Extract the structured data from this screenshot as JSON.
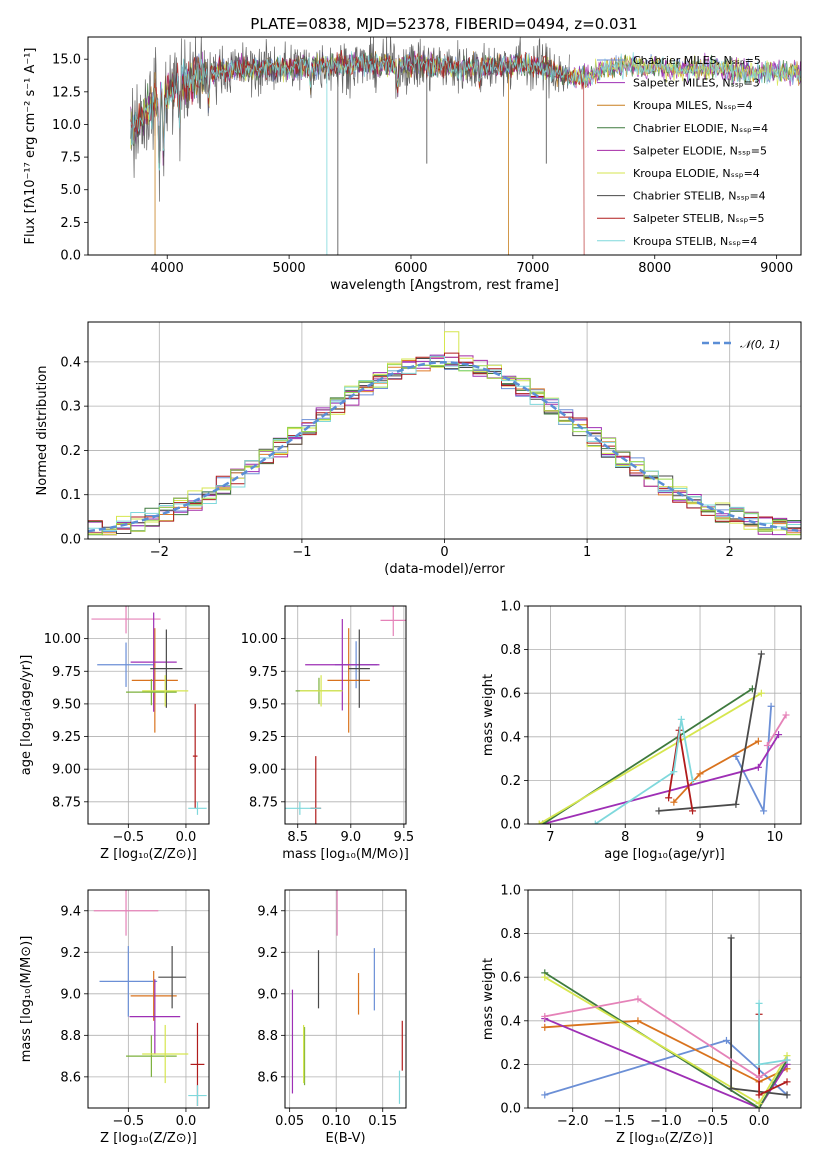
{
  "figure_title": "PLATE=0838, MJD=52378, FIBERID=0494, z=0.031",
  "chart_data": [
    {
      "id": "spectrum",
      "type": "line",
      "title": "PLATE=0838, MJD=52378, FIBERID=0494, z=0.031",
      "xlabel": "wavelength [Angstrom, rest frame]",
      "ylabel": "Flux [fλ10⁻¹⁷ erg cm⁻² s⁻¹ A⁻¹]",
      "xlim": [
        3350,
        9200
      ],
      "ylim": [
        0,
        16.7
      ],
      "xticks": [
        4000,
        5000,
        6000,
        7000,
        8000,
        9000
      ],
      "yticks": [
        0.0,
        2.5,
        5.0,
        7.5,
        10.0,
        12.5,
        15.0
      ],
      "grid": false,
      "legend_position": "top-right",
      "series": [
        {
          "name": "Chabrier MILES, Nₛₛₚ=5",
          "color": "#6b8fd6"
        },
        {
          "name": "Salpeter MILES, Nₛₛₚ=3",
          "color": "#9e2fb5"
        },
        {
          "name": "Kroupa MILES, Nₛₛₚ=4",
          "color": "#c87f1e"
        },
        {
          "name": "Chabrier ELODIE, Nₛₛₚ=4",
          "color": "#3e7a3e"
        },
        {
          "name": "Salpeter ELODIE, Nₛₛₚ=5",
          "color": "#a52aa5"
        },
        {
          "name": "Kroupa ELODIE, Nₛₛₚ=4",
          "color": "#d6e64f"
        },
        {
          "name": "Chabrier STELIB, Nₛₛₚ=4",
          "color": "#4a4a4a"
        },
        {
          "name": "Salpeter STELIB, Nₛₛₚ=5",
          "color": "#b01c1c"
        },
        {
          "name": "Kroupa STELIB, Nₛₛₚ=4",
          "color": "#7fd8dc"
        }
      ],
      "continuum": {
        "x": [
          3700,
          3900,
          4000,
          4100,
          4300,
          4500,
          4800,
          5000,
          5200,
          5500,
          5800,
          6100,
          6400,
          6700,
          6900,
          7100,
          7300,
          7450,
          7600,
          7800,
          7900,
          8000,
          8200,
          8500,
          8800
        ],
        "y": [
          9.5,
          11.8,
          12.6,
          13.0,
          13.9,
          14.2,
          14.3,
          14.4,
          14.5,
          14.6,
          14.6,
          14.5,
          14.4,
          14.5,
          14.6,
          14.4,
          13.6,
          13.6,
          14.3,
          14.6,
          14.3,
          14.4,
          14.2,
          14.3,
          14.0
        ]
      }
    },
    {
      "id": "residuals",
      "type": "histogram",
      "xlabel": "(data-model)/error",
      "ylabel": "Normed distribution",
      "xlim": [
        -2.5,
        2.5
      ],
      "ylim": [
        0,
        0.49
      ],
      "xticks": [
        -2,
        -1,
        0,
        1,
        2
      ],
      "yticks": [
        0.0,
        0.1,
        0.2,
        0.3,
        0.4
      ],
      "grid": true,
      "legend_position": "top-right",
      "reference_label": "𝒩(0, 1)",
      "reference_color": "#5b8ed6"
    },
    {
      "id": "age-vs-z",
      "type": "scatter",
      "xlabel": "Z [log₁₀(Z/Z⊙)]",
      "ylabel": "age  [log₁₀(age/yr)]",
      "xlim": [
        -0.85,
        0.2
      ],
      "ylim": [
        8.58,
        10.25
      ],
      "xticks": [
        -0.5,
        0.0
      ],
      "yticks": [
        8.75,
        9.0,
        9.25,
        9.5,
        9.75,
        10.0
      ],
      "grid": true,
      "points": [
        {
          "color": "#e582b8",
          "x": -0.52,
          "y": 10.15,
          "xerr": 0.3,
          "yerr": 0.11
        },
        {
          "color": "#6b8fd6",
          "x": -0.52,
          "y": 9.8,
          "xerr": 0.25,
          "yerr": 0.17
        },
        {
          "color": "#d9731e",
          "x": -0.27,
          "y": 9.68,
          "xerr": 0.2,
          "yerr": 0.4
        },
        {
          "color": "#9e2fb5",
          "x": -0.28,
          "y": 9.82,
          "xerr": 0.2,
          "yerr": 0.38
        },
        {
          "color": "#4a4a4a",
          "x": -0.17,
          "y": 9.77,
          "xerr": 0.14,
          "yerr": 0.3
        },
        {
          "color": "#7cb13c",
          "x": -0.3,
          "y": 9.59,
          "xerr": 0.22,
          "yerr": 0.1
        },
        {
          "color": "#d6e64f",
          "x": -0.18,
          "y": 9.6,
          "xerr": 0.2,
          "yerr": 0.12
        },
        {
          "color": "#b01c1c",
          "x": 0.08,
          "y": 9.1,
          "xerr": 0.02,
          "yerr": 0.4
        },
        {
          "color": "#7fd8dc",
          "x": 0.1,
          "y": 8.7,
          "xerr": 0.08,
          "yerr": 0.05
        }
      ]
    },
    {
      "id": "age-vs-mass",
      "type": "scatter",
      "xlabel": "mass [log₁₀(M/M⊙)]",
      "ylabel": "",
      "xlim": [
        8.38,
        9.52
      ],
      "ylim": [
        8.58,
        10.25
      ],
      "xticks": [
        8.5,
        9.0,
        9.5
      ],
      "yticks": [
        8.75,
        9.0,
        9.25,
        9.5,
        9.75,
        10.0
      ],
      "grid": true,
      "points": [
        {
          "color": "#e582b8",
          "x": 9.4,
          "y": 10.14,
          "xerr": 0.12,
          "yerr": 0.12
        },
        {
          "color": "#6b8fd6",
          "x": 9.05,
          "y": 9.8,
          "xerr": 0.2,
          "yerr": 0.18
        },
        {
          "color": "#d9731e",
          "x": 8.98,
          "y": 9.68,
          "xerr": 0.2,
          "yerr": 0.4
        },
        {
          "color": "#9e2fb5",
          "x": 8.92,
          "y": 9.8,
          "xerr": 0.35,
          "yerr": 0.35
        },
        {
          "color": "#4a4a4a",
          "x": 9.08,
          "y": 9.77,
          "xerr": 0.1,
          "yerr": 0.3
        },
        {
          "color": "#7cb13c",
          "x": 8.7,
          "y": 9.6,
          "xerr": 0.22,
          "yerr": 0.1
        },
        {
          "color": "#d6e64f",
          "x": 8.72,
          "y": 9.6,
          "xerr": 0.2,
          "yerr": 0.12
        },
        {
          "color": "#b01c1c",
          "x": 8.67,
          "y": 8.7,
          "xerr": 0.05,
          "yerr": 0.4
        },
        {
          "color": "#7fd8dc",
          "x": 8.52,
          "y": 8.7,
          "xerr": 0.2,
          "yerr": 0.05
        }
      ]
    },
    {
      "id": "weight-vs-age",
      "type": "line",
      "xlabel": "age  [log₁₀(age/yr)]",
      "ylabel": "mass weight",
      "xlim": [
        6.7,
        10.35
      ],
      "ylim": [
        0,
        1.0
      ],
      "xticks": [
        7,
        8,
        9,
        10
      ],
      "yticks": [
        0.0,
        0.2,
        0.4,
        0.6,
        0.8,
        1.0
      ],
      "grid": true,
      "series": [
        {
          "color": "#6b8fd6",
          "x": [
            9.48,
            9.85,
            9.95
          ],
          "y": [
            0.31,
            0.06,
            0.54
          ]
        },
        {
          "color": "#d9731e",
          "x": [
            8.65,
            9.0,
            9.78
          ],
          "y": [
            0.1,
            0.23,
            0.38
          ]
        },
        {
          "color": "#9e2fb5",
          "x": [
            6.9,
            9.78,
            10.05
          ],
          "y": [
            0.0,
            0.26,
            0.41
          ]
        },
        {
          "color": "#3e7a3e",
          "x": [
            6.9,
            9.7
          ],
          "y": [
            0.0,
            0.62
          ]
        },
        {
          "color": "#d6e64f",
          "x": [
            6.85,
            9.82
          ],
          "y": [
            0.0,
            0.6
          ]
        },
        {
          "color": "#4a4a4a",
          "x": [
            8.45,
            9.48,
            9.82
          ],
          "y": [
            0.06,
            0.09,
            0.78
          ]
        },
        {
          "color": "#b01c1c",
          "x": [
            8.58,
            8.72,
            8.9
          ],
          "y": [
            0.12,
            0.43,
            0.06
          ]
        },
        {
          "color": "#e582b8",
          "x": [
            9.9,
            10.15
          ],
          "y": [
            0.36,
            0.5
          ]
        },
        {
          "color": "#7fd8dc",
          "x": [
            7.6,
            8.65,
            8.75,
            8.9
          ],
          "y": [
            0.0,
            0.24,
            0.48,
            0.2
          ]
        }
      ]
    },
    {
      "id": "mass-vs-z",
      "type": "scatter",
      "xlabel": "Z [log₁₀(Z/Z⊙)]",
      "ylabel": "mass [log₁₀(M/M⊙)]",
      "xlim": [
        -0.85,
        0.2
      ],
      "ylim": [
        8.45,
        9.5
      ],
      "xticks": [
        -0.5,
        0.0
      ],
      "yticks": [
        8.6,
        8.8,
        9.0,
        9.2,
        9.4
      ],
      "grid": true,
      "points": [
        {
          "color": "#e582b8",
          "x": -0.52,
          "y": 9.4,
          "xerr": 0.28,
          "yerr": 0.12
        },
        {
          "color": "#6b8fd6",
          "x": -0.5,
          "y": 9.06,
          "xerr": 0.25,
          "yerr": 0.17
        },
        {
          "color": "#d9731e",
          "x": -0.28,
          "y": 8.99,
          "xerr": 0.2,
          "yerr": 0.12
        },
        {
          "color": "#9e2fb5",
          "x": -0.27,
          "y": 8.89,
          "xerr": 0.22,
          "yerr": 0.18
        },
        {
          "color": "#4a4a4a",
          "x": -0.12,
          "y": 9.08,
          "xerr": 0.12,
          "yerr": 0.15
        },
        {
          "color": "#7cb13c",
          "x": -0.3,
          "y": 8.7,
          "xerr": 0.22,
          "yerr": 0.1
        },
        {
          "color": "#d6e64f",
          "x": -0.18,
          "y": 8.71,
          "xerr": 0.2,
          "yerr": 0.14
        },
        {
          "color": "#b01c1c",
          "x": 0.1,
          "y": 8.66,
          "xerr": 0.06,
          "yerr": 0.2
        },
        {
          "color": "#7fd8dc",
          "x": 0.1,
          "y": 8.51,
          "xerr": 0.08,
          "yerr": 0.05
        }
      ]
    },
    {
      "id": "mass-vs-ebv",
      "type": "scatter",
      "xlabel": "E(B-V)",
      "ylabel": "",
      "xlim": [
        0.045,
        0.175
      ],
      "ylim": [
        8.45,
        9.5
      ],
      "xticks": [
        0.05,
        0.1,
        0.15
      ],
      "yticks": [
        8.6,
        8.8,
        9.0,
        9.2,
        9.4
      ],
      "grid": true,
      "points": [
        {
          "color": "#e582b8",
          "x": 0.101,
          "y": 9.4,
          "yerr": 0.12
        },
        {
          "color": "#6b8fd6",
          "x": 0.141,
          "y": 9.07,
          "yerr": 0.15
        },
        {
          "color": "#d9731e",
          "x": 0.124,
          "y": 9.0,
          "yerr": 0.1
        },
        {
          "color": "#9e2fb5",
          "x": 0.053,
          "y": 8.77,
          "yerr": 0.25
        },
        {
          "color": "#4a4a4a",
          "x": 0.081,
          "y": 9.07,
          "yerr": 0.14
        },
        {
          "color": "#7cb13c",
          "x": 0.066,
          "y": 8.7,
          "yerr": 0.14
        },
        {
          "color": "#d6e64f",
          "x": 0.065,
          "y": 8.71,
          "yerr": 0.14
        },
        {
          "color": "#b01c1c",
          "x": 0.171,
          "y": 8.75,
          "yerr": 0.12
        },
        {
          "color": "#7fd8dc",
          "x": 0.168,
          "y": 8.55,
          "yerr": 0.08
        }
      ]
    },
    {
      "id": "weight-vs-z",
      "type": "line",
      "xlabel": "Z [log₁₀(Z/Z⊙)]",
      "ylabel": "mass weight",
      "xlim": [
        -2.48,
        0.45
      ],
      "ylim": [
        0,
        1.0
      ],
      "xticks": [
        -2.0,
        -1.5,
        -1.0,
        -0.5,
        0.0
      ],
      "yticks": [
        0.0,
        0.2,
        0.4,
        0.6,
        0.8,
        1.0
      ],
      "grid": true,
      "series": [
        {
          "color": "#6b8fd6",
          "x": [
            -2.3,
            -0.35,
            0.3
          ],
          "y": [
            0.06,
            0.31,
            0.06
          ]
        },
        {
          "color": "#d9731e",
          "x": [
            -2.3,
            -1.3,
            0.0,
            0.3
          ],
          "y": [
            0.37,
            0.4,
            0.12,
            0.18
          ]
        },
        {
          "color": "#9e2fb5",
          "x": [
            -2.3,
            0.0,
            0.3
          ],
          "y": [
            0.41,
            0.0,
            0.2
          ]
        },
        {
          "color": "#3e7a3e",
          "x": [
            -2.3,
            0.0,
            0.3
          ],
          "y": [
            0.62,
            0.0,
            0.22
          ]
        },
        {
          "color": "#d6e64f",
          "x": [
            -2.3,
            0.0,
            0.3
          ],
          "y": [
            0.6,
            0.02,
            0.24
          ]
        },
        {
          "color": "#4a4a4a",
          "x": [
            -0.3,
            -0.3,
            0.3
          ],
          "y": [
            0.78,
            0.09,
            0.06
          ]
        },
        {
          "color": "#b01c1c",
          "x": [
            0.0,
            0.0,
            0.3
          ],
          "y": [
            0.43,
            0.06,
            0.12
          ]
        },
        {
          "color": "#e582b8",
          "x": [
            -2.3,
            -1.3,
            0.0,
            0.3
          ],
          "y": [
            0.42,
            0.5,
            0.14,
            0.22
          ]
        },
        {
          "color": "#7fd8dc",
          "x": [
            0.0,
            0.0,
            0.3
          ],
          "y": [
            0.48,
            0.2,
            0.22
          ]
        }
      ]
    }
  ]
}
